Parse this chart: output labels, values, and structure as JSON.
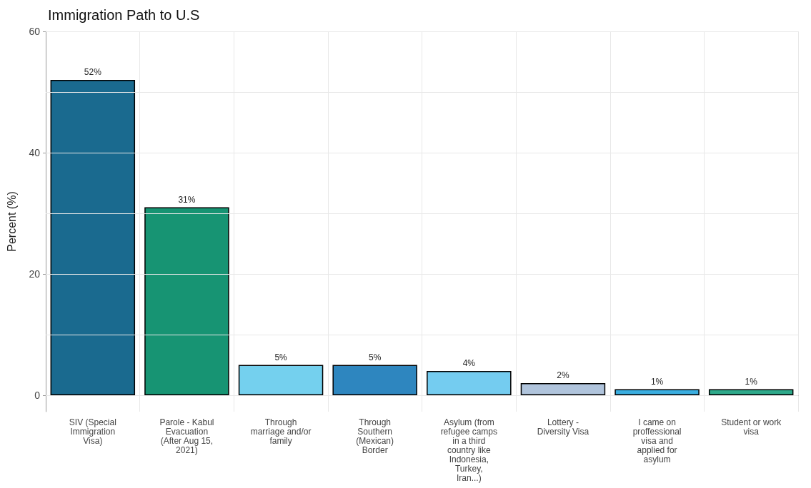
{
  "chart_data": {
    "type": "bar",
    "title": "Immigration Path to U.S",
    "ylabel": "Percent (%)",
    "categories": [
      "SIV (Special\nImmigration\nVisa)",
      "Parole - Kabul\nEvacuation\n(After Aug 15,\n2021)",
      "Through\nmarriage and/or\nfamily",
      "Through\nSouthern\n(Mexican)\nBorder",
      "Asylum (from\nrefugee camps\nin a third\ncountry like\nIndonesia,\nTurkey,\nIran...)",
      "Lottery -\nDiversity Visa",
      "I came on\nproffessional\nvisa and\napplied for\nasylum",
      "Student or work\nvisa"
    ],
    "values": [
      52,
      31,
      5,
      5,
      4,
      2,
      1,
      1
    ],
    "value_labels": [
      "52%",
      "31%",
      "5%",
      "5%",
      "4%",
      "2%",
      "1%",
      "1%"
    ],
    "colors": [
      "#1a6a8f",
      "#179473",
      "#74d0ee",
      "#2e86bf",
      "#74ccf0",
      "#b0c4dc",
      "#3aaee0",
      "#2ea98a"
    ],
    "ylim": [
      -2.7,
      60
    ],
    "yticks": [
      0,
      {
        "value": 10,
        "label": null
      },
      20,
      {
        "value": 30,
        "label": null
      },
      40,
      {
        "value": 50,
        "label": null
      },
      60
    ],
    "grid": true
  }
}
